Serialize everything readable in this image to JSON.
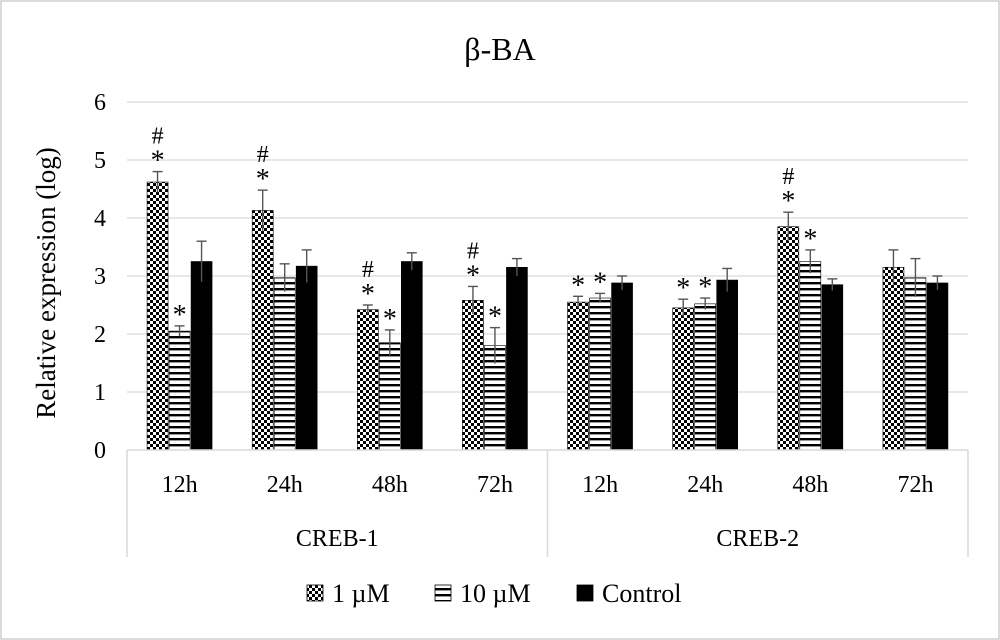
{
  "chart_data": {
    "type": "bar",
    "title": "β-BA",
    "ylabel": "Relative expression (log)",
    "xlabel": "",
    "ylim": [
      0,
      6
    ],
    "yticks": [
      "0",
      "1",
      "2",
      "3",
      "4",
      "5",
      "6"
    ],
    "grid": true,
    "legend_position": "bottom",
    "groups": [
      {
        "label": "CREB-1",
        "categories": [
          "12h",
          "24h",
          "48h",
          "72h"
        ],
        "series": [
          {
            "name": "1 µM",
            "pattern": "dots",
            "values": [
              4.62,
              4.13,
              2.42,
              2.58
            ],
            "errors": [
              0.18,
              0.35,
              0.08,
              0.24
            ],
            "marks": [
              "#*",
              "#*",
              "#*",
              "#*"
            ]
          },
          {
            "name": "10 µM",
            "pattern": "stripes",
            "values": [
              2.05,
              2.97,
              1.85,
              1.8
            ],
            "errors": [
              0.09,
              0.24,
              0.22,
              0.31
            ],
            "marks": [
              "*",
              "",
              "*",
              "*"
            ]
          },
          {
            "name": "Control",
            "pattern": "solid",
            "values": [
              3.25,
              3.17,
              3.25,
              3.15
            ],
            "errors": [
              0.35,
              0.28,
              0.15,
              0.15
            ],
            "marks": [
              "",
              "",
              "",
              ""
            ]
          }
        ]
      },
      {
        "label": "CREB-2",
        "categories": [
          "12h",
          "24h",
          "48h",
          "72h"
        ],
        "series": [
          {
            "name": "1 µM",
            "pattern": "dots",
            "values": [
              2.55,
              2.45,
              3.85,
              3.15
            ],
            "errors": [
              0.1,
              0.15,
              0.25,
              0.3
            ],
            "marks": [
              "*",
              "*",
              "#*",
              ""
            ]
          },
          {
            "name": "10 µM",
            "pattern": "stripes",
            "values": [
              2.62,
              2.52,
              3.25,
              2.97
            ],
            "errors": [
              0.08,
              0.1,
              0.2,
              0.33
            ],
            "marks": [
              "*",
              "*",
              "*",
              ""
            ]
          },
          {
            "name": "Control",
            "pattern": "solid",
            "values": [
              2.88,
              2.93,
              2.85,
              2.88
            ],
            "errors": [
              0.12,
              0.2,
              0.1,
              0.12
            ],
            "marks": [
              "",
              "",
              "",
              ""
            ]
          }
        ]
      }
    ],
    "legend": [
      {
        "name": "1 µM",
        "pattern": "dots"
      },
      {
        "name": "10 µM",
        "pattern": "stripes"
      },
      {
        "name": "Control",
        "pattern": "solid"
      }
    ]
  }
}
